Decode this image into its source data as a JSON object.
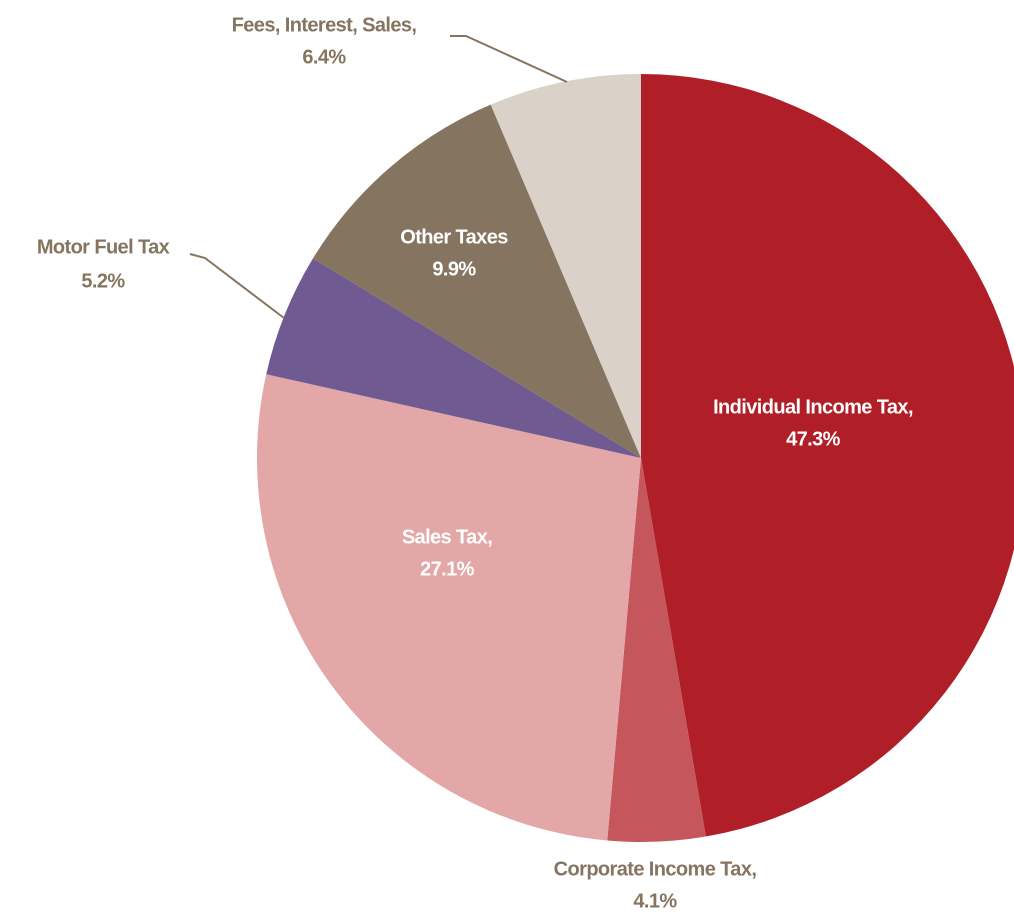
{
  "chart_data": {
    "type": "pie",
    "categories": [
      "Individual Income Tax,",
      "Corporate Income Tax,",
      "Sales Tax,",
      "Motor Fuel Tax",
      "Other Taxes",
      "Fees, Interest, Sales,"
    ],
    "values": [
      47.3,
      4.1,
      27.1,
      5.2,
      9.9,
      6.4
    ],
    "value_labels": [
      "47.3%",
      "4.1%",
      "27.1%",
      "5.2%",
      "9.9%",
      "6.4%"
    ],
    "colors": [
      "#b01e28",
      "#c4565c",
      "#e3a7a7",
      "#6f5a91",
      "#85745f",
      "#dad2c8"
    ]
  }
}
